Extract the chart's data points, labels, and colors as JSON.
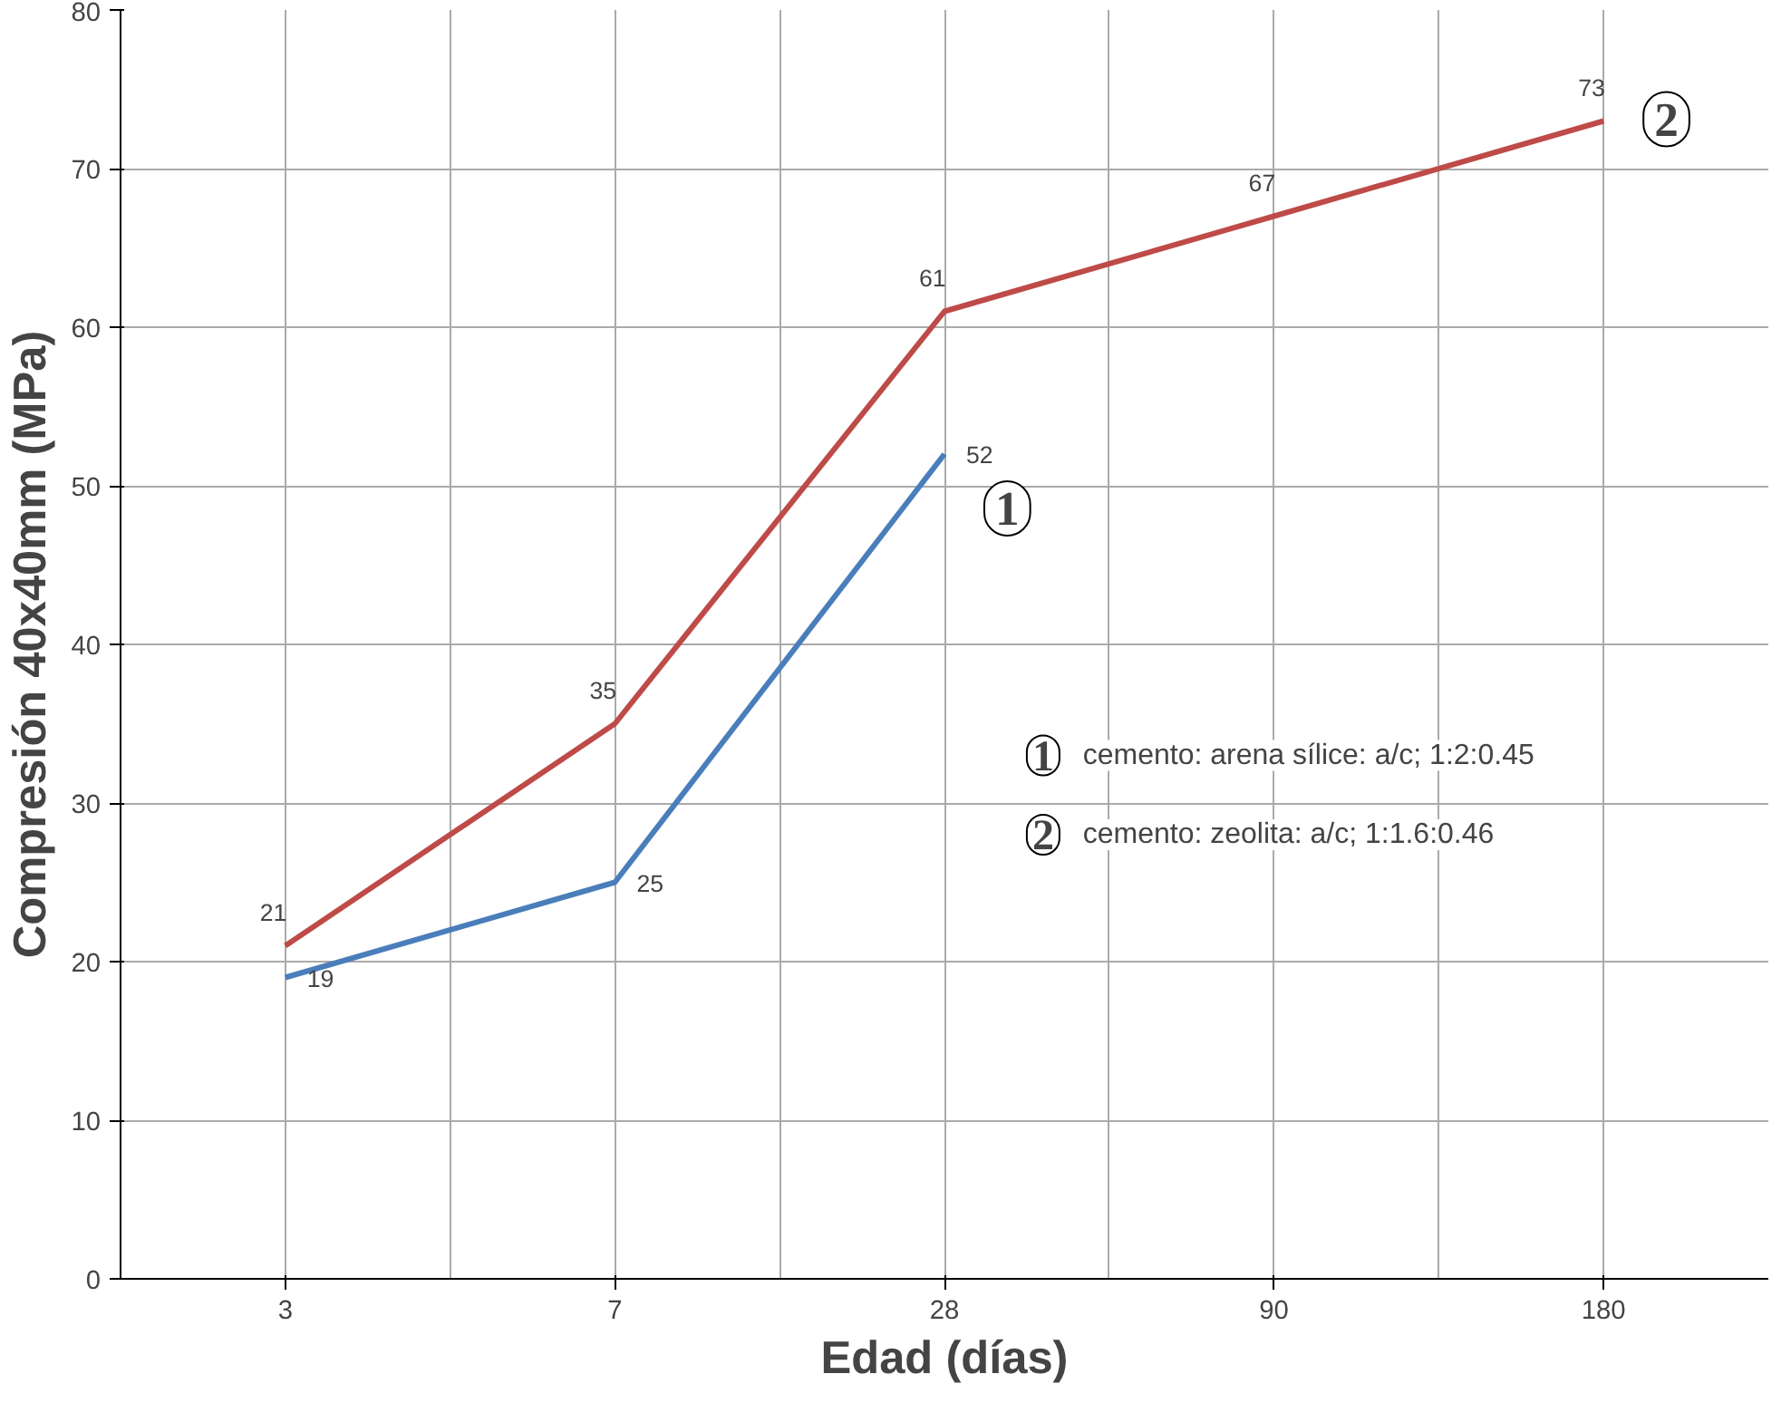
{
  "chart_data": {
    "type": "line",
    "xlabel": "Edad (días)",
    "ylabel": "Compresión 40x40mm (MPa)",
    "categories": [
      "3",
      "7",
      "28",
      "90",
      "180"
    ],
    "series": [
      {
        "name": "1",
        "color": "#4a7ebb",
        "values": [
          19,
          25,
          52,
          null,
          null
        ]
      },
      {
        "name": "2",
        "color": "#be4b48",
        "values": [
          21,
          35,
          61,
          67,
          73
        ]
      }
    ],
    "ylim": [
      0,
      80
    ],
    "yticks": [
      0,
      10,
      20,
      30,
      40,
      50,
      60,
      70,
      80
    ],
    "grid": true,
    "data_labels": true,
    "marker": "none",
    "line_style": "solid",
    "annotations": [
      "cemento: arena sílice: a/c; 1:2:0.45",
      "cemento: zeolita: a/c; 1:1.6:0.46"
    ]
  }
}
